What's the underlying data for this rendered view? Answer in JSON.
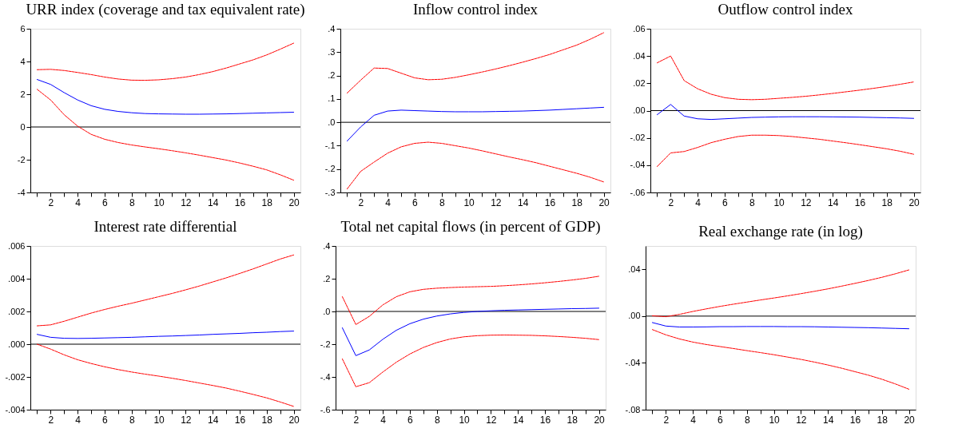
{
  "chart_data": [
    {
      "type": "line",
      "title": "URR index (coverage and tax equivalent rate)",
      "x": [
        1,
        2,
        3,
        4,
        5,
        6,
        7,
        8,
        9,
        10,
        11,
        12,
        13,
        14,
        15,
        16,
        17,
        18,
        19,
        20
      ],
      "xlim": [
        0.5,
        20.5
      ],
      "xticks": [
        {
          "value": 1,
          "label": null
        },
        2,
        {
          "value": 3,
          "label": null
        },
        4,
        {
          "value": 5,
          "label": null
        },
        6,
        {
          "value": 7,
          "label": null
        },
        8,
        {
          "value": 9,
          "label": null
        },
        10,
        {
          "value": 11,
          "label": null
        },
        12,
        {
          "value": 13,
          "label": null
        },
        14,
        {
          "value": 15,
          "label": null
        },
        16,
        {
          "value": 17,
          "label": null
        },
        18,
        {
          "value": 19,
          "label": null
        },
        20
      ],
      "ylim": [
        -4,
        6
      ],
      "yticks": [
        -4,
        -2,
        0,
        2,
        4,
        6
      ],
      "grid": false,
      "ref_lines": [
        {
          "axis": "y",
          "value": 0,
          "color": "#000000"
        }
      ],
      "series": [
        {
          "color": "#0000ff",
          "line_style": "solid",
          "values": [
            2.9,
            2.6,
            2.1,
            1.65,
            1.3,
            1.08,
            0.95,
            0.87,
            0.82,
            0.8,
            0.79,
            0.78,
            0.78,
            0.79,
            0.8,
            0.82,
            0.84,
            0.86,
            0.88,
            0.9
          ]
        },
        {
          "color": "#ff0000",
          "line_style": "dashed",
          "values": [
            3.5,
            3.52,
            3.45,
            3.33,
            3.2,
            3.05,
            2.93,
            2.86,
            2.85,
            2.88,
            2.95,
            3.05,
            3.2,
            3.38,
            3.6,
            3.85,
            4.1,
            4.4,
            4.75,
            5.12
          ]
        },
        {
          "color": "#ff0000",
          "line_style": "dashed",
          "values": [
            2.3,
            1.65,
            0.75,
            0.05,
            -0.45,
            -0.75,
            -0.95,
            -1.1,
            -1.22,
            -1.33,
            -1.45,
            -1.58,
            -1.72,
            -1.87,
            -2.02,
            -2.2,
            -2.4,
            -2.62,
            -2.92,
            -3.25
          ]
        }
      ]
    },
    {
      "type": "line",
      "title": "Inflow control index",
      "x": [
        1,
        2,
        3,
        4,
        5,
        6,
        7,
        8,
        9,
        10,
        11,
        12,
        13,
        14,
        15,
        16,
        17,
        18,
        19,
        20
      ],
      "xlim": [
        0.5,
        20.5
      ],
      "xticks": [
        {
          "value": 1,
          "label": null
        },
        2,
        {
          "value": 3,
          "label": null
        },
        4,
        {
          "value": 5,
          "label": null
        },
        6,
        {
          "value": 7,
          "label": null
        },
        8,
        {
          "value": 9,
          "label": null
        },
        10,
        {
          "value": 11,
          "label": null
        },
        12,
        {
          "value": 13,
          "label": null
        },
        14,
        {
          "value": 15,
          "label": null
        },
        16,
        {
          "value": 17,
          "label": null
        },
        18,
        {
          "value": 19,
          "label": null
        },
        20
      ],
      "ylim": [
        -0.3,
        0.4
      ],
      "yticks": [
        {
          "value": -0.3,
          "label": "-.3"
        },
        {
          "value": -0.2,
          "label": "-.2"
        },
        {
          "value": -0.1,
          "label": "-.1"
        },
        {
          "value": 0,
          "label": ".0"
        },
        {
          "value": 0.1,
          "label": ".1"
        },
        {
          "value": 0.2,
          "label": ".2"
        },
        {
          "value": 0.3,
          "label": ".3"
        },
        {
          "value": 0.4,
          "label": ".4"
        }
      ],
      "grid": false,
      "ref_lines": [
        {
          "axis": "y",
          "value": 0,
          "color": "#000000"
        }
      ],
      "series": [
        {
          "color": "#0000ff",
          "line_style": "solid",
          "values": [
            -0.08,
            -0.02,
            0.03,
            0.048,
            0.052,
            0.05,
            0.048,
            0.046,
            0.045,
            0.045,
            0.045,
            0.046,
            0.047,
            0.048,
            0.05,
            0.052,
            0.055,
            0.058,
            0.061,
            0.064
          ]
        },
        {
          "color": "#ff0000",
          "line_style": "dashed",
          "values": [
            0.125,
            0.18,
            0.232,
            0.23,
            0.21,
            0.19,
            0.182,
            0.184,
            0.192,
            0.203,
            0.215,
            0.228,
            0.242,
            0.257,
            0.273,
            0.29,
            0.31,
            0.33,
            0.355,
            0.383
          ]
        },
        {
          "color": "#ff0000",
          "line_style": "dashed",
          "values": [
            -0.285,
            -0.21,
            -0.17,
            -0.132,
            -0.105,
            -0.09,
            -0.085,
            -0.09,
            -0.1,
            -0.11,
            -0.122,
            -0.135,
            -0.148,
            -0.16,
            -0.173,
            -0.188,
            -0.203,
            -0.218,
            -0.235,
            -0.255
          ]
        }
      ]
    },
    {
      "type": "line",
      "title": "Outflow control index",
      "x": [
        1,
        2,
        3,
        4,
        5,
        6,
        7,
        8,
        9,
        10,
        11,
        12,
        13,
        14,
        15,
        16,
        17,
        18,
        19,
        20
      ],
      "xlim": [
        0.5,
        20.5
      ],
      "xticks": [
        {
          "value": 1,
          "label": null
        },
        2,
        {
          "value": 3,
          "label": null
        },
        4,
        {
          "value": 5,
          "label": null
        },
        6,
        {
          "value": 7,
          "label": null
        },
        8,
        {
          "value": 9,
          "label": null
        },
        10,
        {
          "value": 11,
          "label": null
        },
        12,
        {
          "value": 13,
          "label": null
        },
        14,
        {
          "value": 15,
          "label": null
        },
        16,
        {
          "value": 17,
          "label": null
        },
        18,
        {
          "value": 19,
          "label": null
        },
        20
      ],
      "ylim": [
        -0.06,
        0.06
      ],
      "yticks": [
        {
          "value": -0.06,
          "label": "-.06"
        },
        {
          "value": -0.04,
          "label": "-.04"
        },
        {
          "value": -0.02,
          "label": "-.02"
        },
        {
          "value": 0,
          "label": ".00"
        },
        {
          "value": 0.02,
          "label": ".02"
        },
        {
          "value": 0.04,
          "label": ".04"
        },
        {
          "value": 0.06,
          "label": ".06"
        }
      ],
      "grid": false,
      "ref_lines": [
        {
          "axis": "y",
          "value": 0,
          "color": "#000000"
        }
      ],
      "series": [
        {
          "color": "#0000ff",
          "line_style": "solid",
          "values": [
            -0.003,
            0.0045,
            -0.004,
            -0.006,
            -0.0065,
            -0.006,
            -0.0055,
            -0.005,
            -0.0048,
            -0.0046,
            -0.0045,
            -0.0045,
            -0.0045,
            -0.0046,
            -0.0047,
            -0.0048,
            -0.005,
            -0.0052,
            -0.0054,
            -0.0057
          ]
        },
        {
          "color": "#ff0000",
          "line_style": "dashed",
          "values": [
            0.035,
            0.04,
            0.022,
            0.016,
            0.012,
            0.0095,
            0.0083,
            0.008,
            0.0083,
            0.009,
            0.0097,
            0.0105,
            0.0115,
            0.0126,
            0.0138,
            0.015,
            0.0163,
            0.0177,
            0.0193,
            0.021
          ]
        },
        {
          "color": "#ff0000",
          "line_style": "dashed",
          "values": [
            -0.041,
            -0.031,
            -0.03,
            -0.027,
            -0.0235,
            -0.021,
            -0.019,
            -0.018,
            -0.018,
            -0.0183,
            -0.019,
            -0.02,
            -0.021,
            -0.0223,
            -0.0236,
            -0.025,
            -0.0265,
            -0.028,
            -0.0298,
            -0.032
          ]
        }
      ]
    },
    {
      "type": "line",
      "title": "Interest rate differential",
      "x": [
        1,
        2,
        3,
        4,
        5,
        6,
        7,
        8,
        9,
        10,
        11,
        12,
        13,
        14,
        15,
        16,
        17,
        18,
        19,
        20
      ],
      "xlim": [
        0.5,
        20.5
      ],
      "xticks": [
        {
          "value": 1,
          "label": null
        },
        2,
        {
          "value": 3,
          "label": null
        },
        4,
        {
          "value": 5,
          "label": null
        },
        6,
        {
          "value": 7,
          "label": null
        },
        8,
        {
          "value": 9,
          "label": null
        },
        10,
        {
          "value": 11,
          "label": null
        },
        12,
        {
          "value": 13,
          "label": null
        },
        14,
        {
          "value": 15,
          "label": null
        },
        16,
        {
          "value": 17,
          "label": null
        },
        18,
        {
          "value": 19,
          "label": null
        },
        20
      ],
      "ylim": [
        -0.004,
        0.006
      ],
      "yticks": [
        {
          "value": -0.004,
          "label": "-.004"
        },
        {
          "value": -0.002,
          "label": "-.002"
        },
        {
          "value": 0,
          "label": ".000"
        },
        {
          "value": 0.002,
          "label": ".002"
        },
        {
          "value": 0.004,
          "label": ".004"
        },
        {
          "value": 0.006,
          "label": ".006"
        }
      ],
      "grid": false,
      "ref_lines": [
        {
          "axis": "y",
          "value": 0,
          "color": "#000000"
        }
      ],
      "series": [
        {
          "color": "#0000ff",
          "line_style": "solid",
          "values": [
            0.0006,
            0.00042,
            0.00036,
            0.00035,
            0.00036,
            0.00038,
            0.0004,
            0.00042,
            0.00045,
            0.00048,
            0.0005,
            0.00053,
            0.00056,
            0.0006,
            0.00063,
            0.00066,
            0.0007,
            0.00073,
            0.00077,
            0.0008
          ]
        },
        {
          "color": "#ff0000",
          "line_style": "dashed",
          "values": [
            0.00112,
            0.00118,
            0.0014,
            0.00165,
            0.0019,
            0.00212,
            0.00232,
            0.0025,
            0.0027,
            0.0029,
            0.0031,
            0.00332,
            0.00355,
            0.0038,
            0.00405,
            0.00432,
            0.0046,
            0.0049,
            0.0052,
            0.00545
          ]
        },
        {
          "color": "#ff0000",
          "line_style": "dashed",
          "values": [
            0.0,
            -0.0003,
            -0.00065,
            -0.00095,
            -0.00118,
            -0.00138,
            -0.00155,
            -0.0017,
            -0.00183,
            -0.00195,
            -0.00208,
            -0.00222,
            -0.00237,
            -0.00252,
            -0.00268,
            -0.00287,
            -0.00307,
            -0.00328,
            -0.00353,
            -0.0038
          ]
        }
      ]
    },
    {
      "type": "line",
      "title": "Total net capital flows (in percent of GDP)",
      "x": [
        1,
        2,
        3,
        4,
        5,
        6,
        7,
        8,
        9,
        10,
        11,
        12,
        13,
        14,
        15,
        16,
        17,
        18,
        19,
        20
      ],
      "xlim": [
        0.5,
        20.5
      ],
      "xticks": [
        {
          "value": 1,
          "label": null
        },
        2,
        {
          "value": 3,
          "label": null
        },
        4,
        {
          "value": 5,
          "label": null
        },
        6,
        {
          "value": 7,
          "label": null
        },
        8,
        {
          "value": 9,
          "label": null
        },
        10,
        {
          "value": 11,
          "label": null
        },
        12,
        {
          "value": 13,
          "label": null
        },
        14,
        {
          "value": 15,
          "label": null
        },
        16,
        {
          "value": 17,
          "label": null
        },
        18,
        {
          "value": 19,
          "label": null
        },
        20
      ],
      "ylim": [
        -0.6,
        0.4
      ],
      "yticks": [
        {
          "value": -0.6,
          "label": "-.6"
        },
        {
          "value": -0.4,
          "label": "-.4"
        },
        {
          "value": -0.2,
          "label": "-.2"
        },
        {
          "value": 0,
          "label": ".0"
        },
        {
          "value": 0.2,
          "label": ".2"
        },
        {
          "value": 0.4,
          "label": ".4"
        }
      ],
      "grid": false,
      "ref_lines": [
        {
          "axis": "y",
          "value": 0,
          "color": "#000000"
        }
      ],
      "series": [
        {
          "color": "#0000ff",
          "line_style": "solid",
          "values": [
            -0.1,
            -0.27,
            -0.235,
            -0.17,
            -0.115,
            -0.075,
            -0.047,
            -0.028,
            -0.015,
            -0.006,
            0,
            0.004,
            0.007,
            0.009,
            0.011,
            0.013,
            0.015,
            0.017,
            0.018,
            0.02
          ]
        },
        {
          "color": "#ff0000",
          "line_style": "dashed",
          "values": [
            0.09,
            -0.08,
            -0.03,
            0.04,
            0.09,
            0.12,
            0.135,
            0.142,
            0.146,
            0.149,
            0.151,
            0.153,
            0.157,
            0.162,
            0.168,
            0.175,
            0.183,
            0.192,
            0.202,
            0.215
          ]
        },
        {
          "color": "#ff0000",
          "line_style": "dashed",
          "values": [
            -0.29,
            -0.46,
            -0.435,
            -0.37,
            -0.31,
            -0.26,
            -0.22,
            -0.19,
            -0.168,
            -0.155,
            -0.148,
            -0.145,
            -0.144,
            -0.145,
            -0.146,
            -0.149,
            -0.153,
            -0.158,
            -0.164,
            -0.172
          ]
        }
      ]
    },
    {
      "type": "line",
      "title": "Real exchange rate (in log)",
      "x": [
        1,
        2,
        3,
        4,
        5,
        6,
        7,
        8,
        9,
        10,
        11,
        12,
        13,
        14,
        15,
        16,
        17,
        18,
        19,
        20
      ],
      "xlim": [
        0.5,
        20.5
      ],
      "xticks": [
        {
          "value": 1,
          "label": null
        },
        2,
        {
          "value": 3,
          "label": null
        },
        4,
        {
          "value": 5,
          "label": null
        },
        6,
        {
          "value": 7,
          "label": null
        },
        8,
        {
          "value": 9,
          "label": null
        },
        10,
        {
          "value": 11,
          "label": null
        },
        12,
        {
          "value": 13,
          "label": null
        },
        14,
        {
          "value": 15,
          "label": null
        },
        16,
        {
          "value": 17,
          "label": null
        },
        18,
        {
          "value": 19,
          "label": null
        },
        20
      ],
      "ylim": [
        -0.08,
        0.06
      ],
      "yticks": [
        {
          "value": -0.08,
          "label": "-.08"
        },
        {
          "value": -0.04,
          "label": "-.04"
        },
        {
          "value": 0,
          "label": ".00"
        },
        {
          "value": 0.04,
          "label": ".04"
        }
      ],
      "grid": false,
      "ref_lines": [
        {
          "axis": "y",
          "value": 0,
          "color": "#000000"
        }
      ],
      "series": [
        {
          "color": "#0000ff",
          "line_style": "solid",
          "values": [
            -0.0055,
            -0.0085,
            -0.0093,
            -0.0093,
            -0.0092,
            -0.009,
            -0.009,
            -0.0089,
            -0.0089,
            -0.0089,
            -0.009,
            -0.009,
            -0.0091,
            -0.0093,
            -0.0095,
            -0.0097,
            -0.0099,
            -0.0102,
            -0.0105,
            -0.0108
          ]
        },
        {
          "color": "#ff0000",
          "line_style": "dashed",
          "values": [
            0.0003,
            -0.0005,
            0.0015,
            0.004,
            0.0062,
            0.0083,
            0.0102,
            0.012,
            0.0138,
            0.0155,
            0.0173,
            0.0192,
            0.0212,
            0.0233,
            0.0256,
            0.028,
            0.0305,
            0.0332,
            0.0362,
            0.0395
          ]
        },
        {
          "color": "#ff0000",
          "line_style": "dashed",
          "values": [
            -0.0115,
            -0.016,
            -0.0195,
            -0.0222,
            -0.0243,
            -0.026,
            -0.0277,
            -0.0295,
            -0.0312,
            -0.033,
            -0.035,
            -0.037,
            -0.0393,
            -0.0418,
            -0.0445,
            -0.0475,
            -0.0505,
            -0.054,
            -0.058,
            -0.0625
          ]
        }
      ]
    }
  ]
}
